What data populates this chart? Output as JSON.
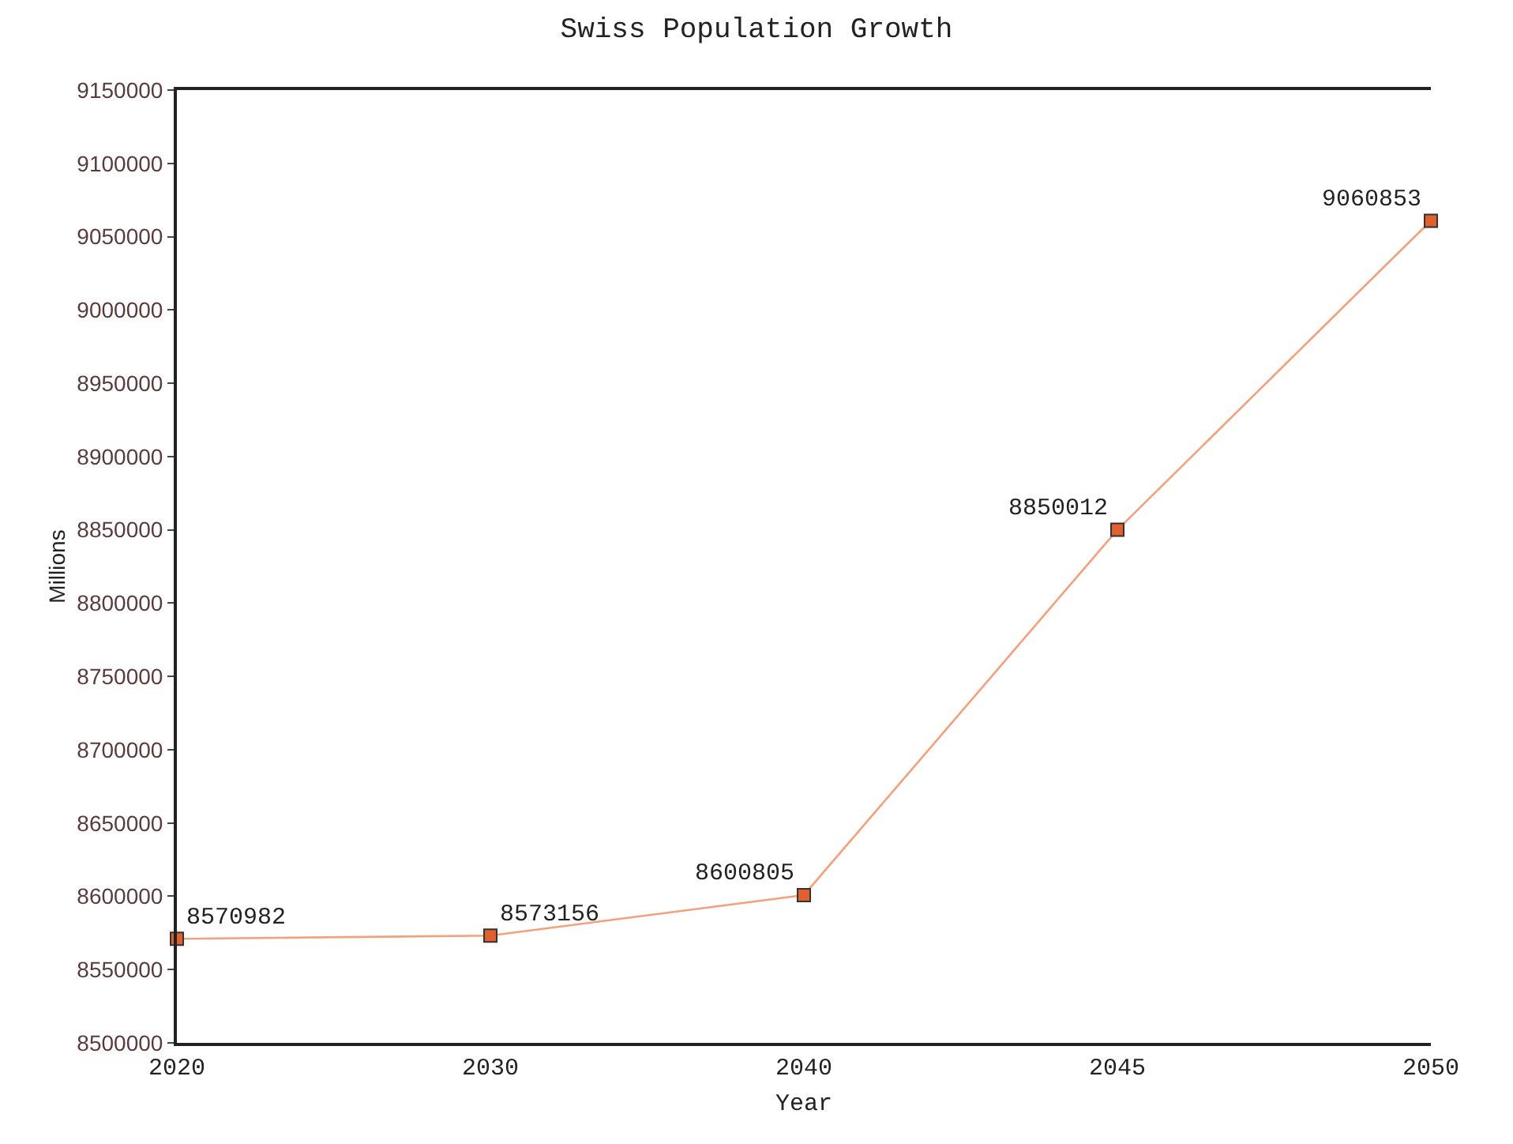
{
  "chart_data": {
    "type": "line",
    "title": "Swiss Population Growth",
    "xlabel": "Year",
    "ylabel": "Millions",
    "categories": [
      "2020",
      "2030",
      "2040",
      "2045",
      "2050"
    ],
    "series": [
      {
        "color": "#f4a07a",
        "colors": [
          "#e0602e",
          "#e0602e",
          "#e0602e",
          "#e0602e",
          "#e0602e"
        ],
        "values": [
          8570982,
          8573156,
          8600805,
          8850012,
          9060853
        ]
      }
    ],
    "ylim": [
      8500000,
      9150000
    ],
    "yticks": [
      8500000,
      8550000,
      8600000,
      8650000,
      8700000,
      8750000,
      8800000,
      8850000,
      8900000,
      8950000,
      9000000,
      9050000,
      9100000,
      9150000
    ],
    "data_labels": true,
    "legend": false,
    "marker": "square",
    "line_style": "solid"
  }
}
